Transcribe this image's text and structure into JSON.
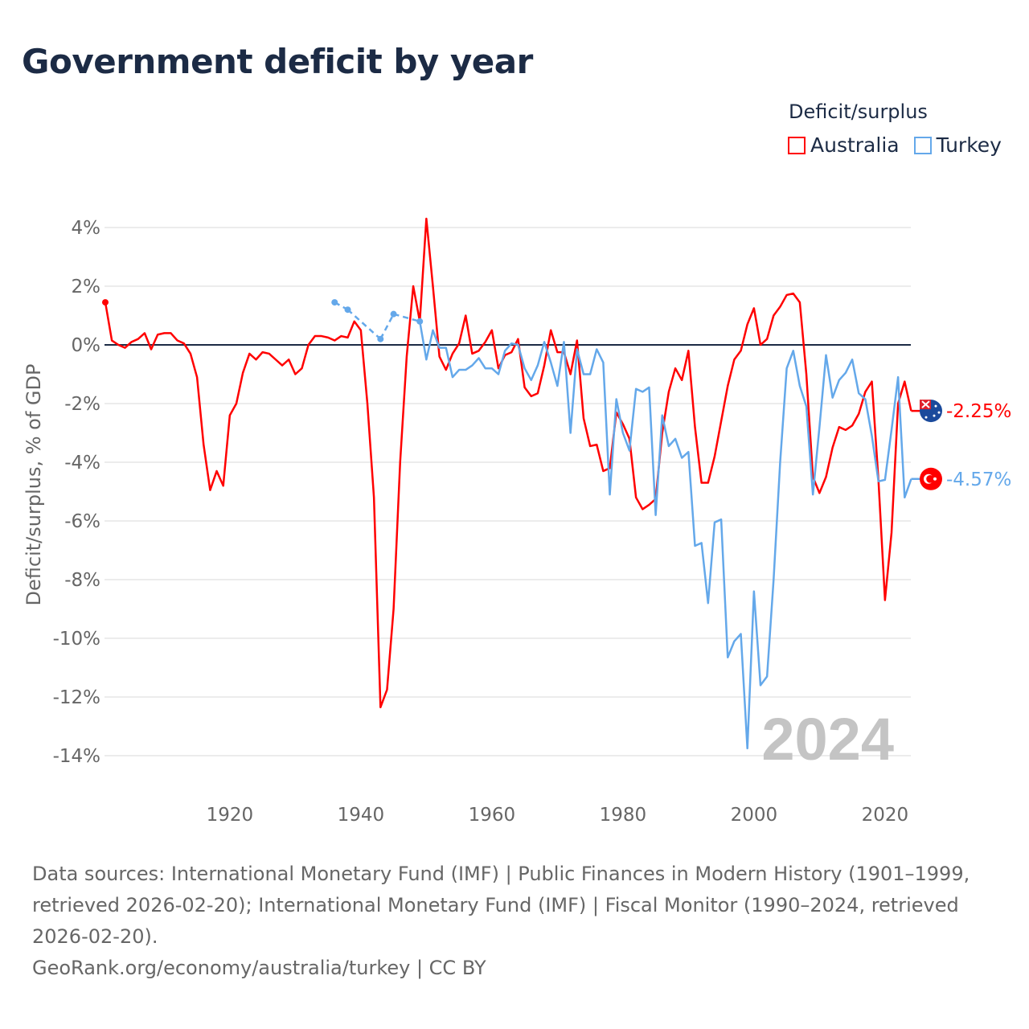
{
  "title": "Government deficit by year",
  "legend": {
    "title": "Deficit/surplus"
  },
  "footer": {
    "sources": "Data sources: International Monetary Fund (IMF) | Public Finances in Modern History (1901–1999, retrieved 2026-02-20); International Monetary Fund (IMF) | Fiscal Monitor (1990–2024, retrieved 2026-02-20).",
    "credit": "GeoRank.org/economy/australia/turkey | CC BY"
  },
  "chart_data": {
    "type": "line",
    "title": "Government deficit by year",
    "xlabel": "",
    "ylabel": "Deficit/surplus, % of GDP",
    "xlim": [
      1901,
      2024
    ],
    "ylim": [
      -15,
      4.4
    ],
    "xticks": [
      1920,
      1940,
      1960,
      1980,
      2000,
      2020
    ],
    "yticks": [
      4,
      2,
      0,
      -2,
      -4,
      -6,
      -8,
      -10,
      -12,
      -14
    ],
    "ytick_labels": [
      "4%",
      "2%",
      "0%",
      "-2%",
      "-4%",
      "-6%",
      "-8%",
      "-10%",
      "-12%",
      "-14%"
    ],
    "watermark_year": "2024",
    "grid": true,
    "series": [
      {
        "name": "Australia",
        "color": "#ff0000",
        "end_label": "-2.25%",
        "flag_icon": "australia-flag-icon",
        "start_year": 1901,
        "values": [
          1.45,
          0.15,
          0.0,
          -0.1,
          0.1,
          0.2,
          0.4,
          -0.15,
          0.35,
          0.4,
          0.4,
          0.15,
          0.05,
          -0.3,
          -1.1,
          -3.4,
          -4.95,
          -4.3,
          -4.8,
          -2.4,
          -2.0,
          -0.95,
          -0.3,
          -0.5,
          -0.25,
          -0.3,
          -0.5,
          -0.7,
          -0.5,
          -1.0,
          -0.8,
          0.0,
          0.3,
          0.3,
          0.25,
          0.15,
          0.3,
          0.25,
          0.8,
          0.5,
          -2.0,
          -5.2,
          -12.35,
          -11.75,
          -9.0,
          -4.0,
          -0.4,
          2.0,
          0.8,
          4.3,
          2.0,
          -0.4,
          -0.85,
          -0.3,
          0.05,
          1.0,
          -0.3,
          -0.2,
          0.1,
          0.5,
          -0.8,
          -0.35,
          -0.25,
          0.2,
          -1.45,
          -1.75,
          -1.65,
          -0.7,
          0.5,
          -0.25,
          -0.25,
          -1.0,
          0.15,
          -2.5,
          -3.45,
          -3.4,
          -4.3,
          -4.2,
          -2.3,
          -2.7,
          -3.2,
          -5.2,
          -5.6,
          -5.45,
          -5.25,
          -3.0,
          -1.6,
          -0.8,
          -1.2,
          -0.2,
          -2.8,
          -4.7,
          -4.7,
          -3.8,
          -2.6,
          -1.4,
          -0.5,
          -0.2,
          0.7,
          1.25,
          0.0,
          0.2,
          1.0,
          1.3,
          1.7,
          1.75,
          1.45,
          -1.0,
          -4.5,
          -5.05,
          -4.5,
          -3.5,
          -2.8,
          -2.9,
          -2.75,
          -2.35,
          -1.6,
          -1.25,
          -4.6,
          -8.7,
          -6.4,
          -2.0,
          -1.25,
          -2.25
        ]
      },
      {
        "name": "Turkey",
        "color": "#64a8ea",
        "end_label": "-4.57%",
        "flag_icon": "turkey-flag-icon",
        "start_year": 1936,
        "values": [
          1.45,
          null,
          1.2,
          null,
          null,
          null,
          null,
          0.2,
          null,
          1.05,
          null,
          null,
          null,
          0.8,
          -0.5,
          0.5,
          -0.1,
          -0.1,
          -1.1,
          -0.85,
          -0.85,
          -0.7,
          -0.45,
          -0.8,
          -0.8,
          -1.0,
          -0.2,
          0.05,
          0.0,
          -0.8,
          -1.2,
          -0.7,
          0.1,
          -0.6,
          -1.4,
          0.1,
          -3.0,
          -0.15,
          -1.0,
          -1.0,
          -0.15,
          -0.6,
          -5.1,
          -1.85,
          -3.0,
          -3.6,
          -1.5,
          -1.6,
          -1.45,
          -5.8,
          -2.4,
          -3.45,
          -3.2,
          -3.85,
          -3.65,
          -6.85,
          -6.75,
          -8.8,
          -6.05,
          -5.95,
          -10.65,
          -10.1,
          -9.85,
          -13.75,
          -8.4,
          -11.6,
          -11.3,
          -8.0,
          -4.0,
          -0.8,
          -0.2,
          -1.4,
          -2.1,
          -5.1,
          -2.8,
          -0.35,
          -1.8,
          -1.2,
          -0.95,
          -0.5,
          -1.65,
          -1.85,
          -3.1,
          -4.65,
          -4.6,
          -2.9,
          -1.1,
          -5.2,
          -4.57
        ]
      }
    ]
  }
}
